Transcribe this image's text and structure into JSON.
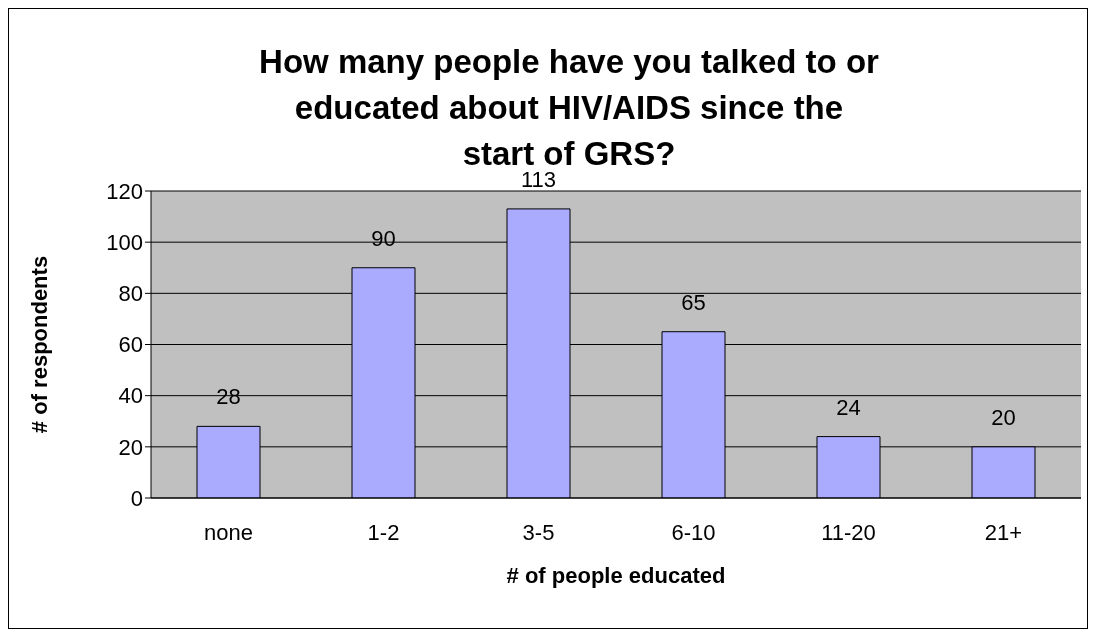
{
  "chart_data": {
    "type": "bar",
    "title": "How many people have you talked to or educated about HIV/AIDS since the start of GRS?",
    "xlabel": "# of people educated",
    "ylabel": "# of respondents",
    "categories": [
      "none",
      "1-2",
      "3-5",
      "6-10",
      "11-20",
      "21+"
    ],
    "values": [
      28,
      90,
      113,
      65,
      24,
      20
    ],
    "color": "#aaaaff",
    "ylim": [
      0,
      120
    ],
    "yticks": [
      0,
      20,
      40,
      60,
      80,
      100,
      120
    ],
    "grid": "y",
    "data_labels": true,
    "legend": false
  }
}
